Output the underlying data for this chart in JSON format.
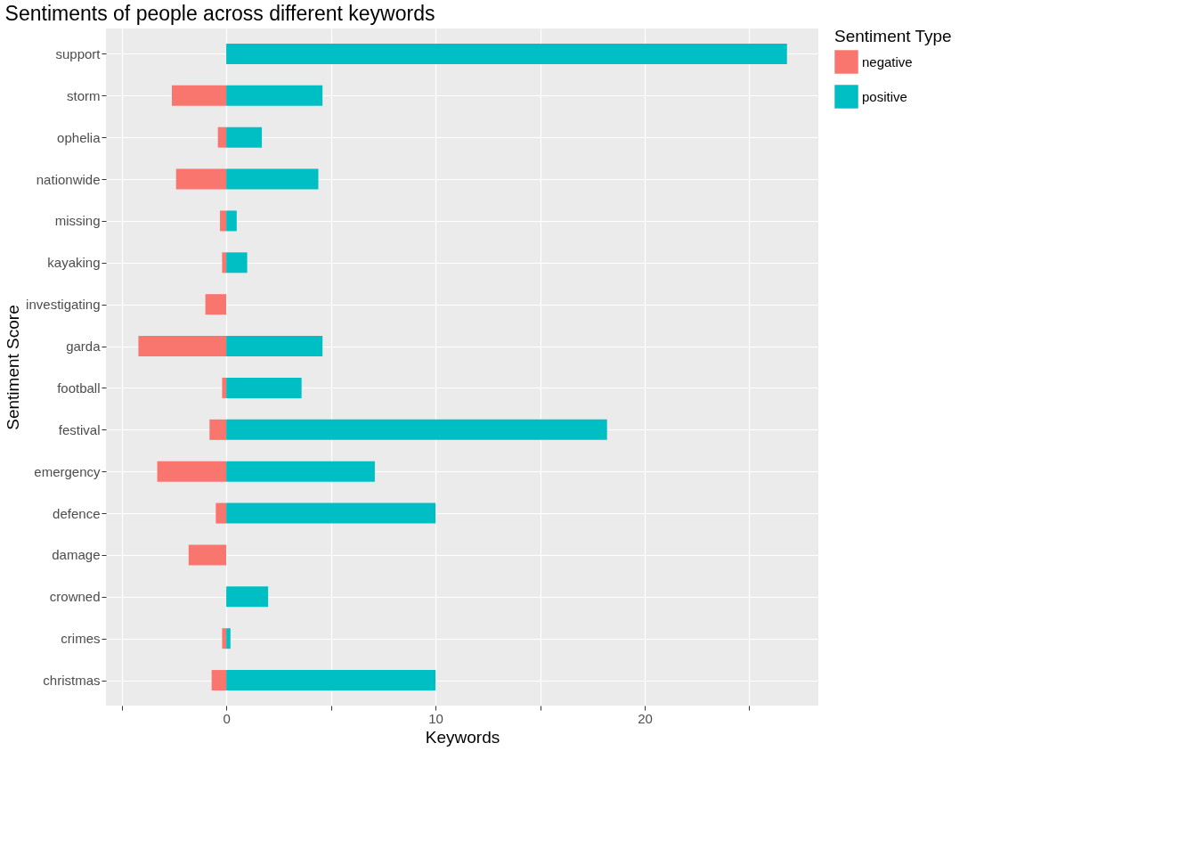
{
  "chart_data": {
    "type": "bar",
    "orientation": "horizontal",
    "title": "Sentiments of people across different keywords",
    "xlabel": "Keywords",
    "ylabel": "Sentiment Score",
    "legend_title": "Sentiment Type",
    "categories": [
      "support",
      "storm",
      "ophelia",
      "nationwide",
      "missing",
      "kayaking",
      "investigating",
      "garda",
      "football",
      "festival",
      "emergency",
      "defence",
      "damage",
      "crowned",
      "crimes",
      "christmas"
    ],
    "series": [
      {
        "name": "negative",
        "color": "#f8766d",
        "values": [
          null,
          -2.6,
          -0.4,
          -2.4,
          -0.3,
          -0.2,
          -1.0,
          -4.2,
          -0.2,
          -0.8,
          -3.3,
          -0.5,
          -1.8,
          null,
          -0.2,
          -0.7
        ]
      },
      {
        "name": "positive",
        "color": "#00bfc4",
        "values": [
          26.8,
          4.6,
          1.7,
          4.4,
          0.5,
          1.0,
          null,
          4.6,
          3.6,
          18.2,
          7.1,
          10.0,
          null,
          2.0,
          0.2,
          10.0
        ]
      }
    ],
    "xlim": [
      -5.75,
      28.3
    ],
    "xticks": [
      {
        "value": -5,
        "label": null
      },
      0,
      {
        "value": 5,
        "label": null
      },
      10,
      {
        "value": 15,
        "label": null
      },
      20,
      {
        "value": 25,
        "label": null
      }
    ],
    "grid": true,
    "legend": "right",
    "stacked": true
  }
}
